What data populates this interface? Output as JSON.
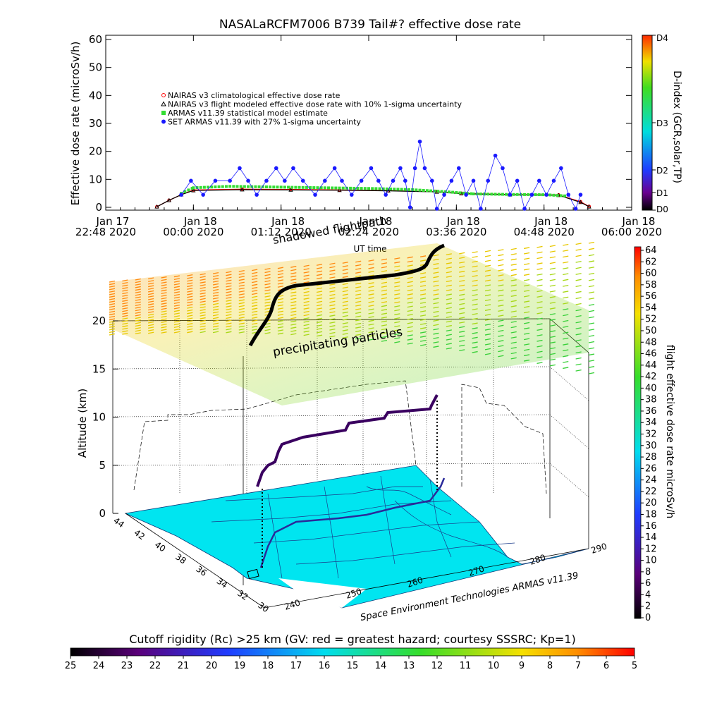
{
  "chart_data": [
    {
      "type": "scatter",
      "title": "NASALaRCFM7006  B739 Tail#? effective dose rate",
      "xlabel": "UT time",
      "ylabel": "Effective dose rate (microSv/h)",
      "ylim": [
        0,
        60
      ],
      "y_ticks": [
        "0",
        "10",
        "20",
        "30",
        "40",
        "50",
        "60"
      ],
      "x_tick_labels": [
        [
          "Jan 17",
          "22:48 2020"
        ],
        [
          "Jan 18",
          "00:00 2020"
        ],
        [
          "Jan 18",
          "01:12 2020"
        ],
        [
          "Jan 18",
          "02:24 2020"
        ],
        [
          "Jan 18",
          "03:36 2020"
        ],
        [
          "Jan 18",
          "04:48 2020"
        ],
        [
          "Jan 18",
          "06:00 2020"
        ]
      ],
      "x_ticks_minutes": [
        1368,
        1440,
        1512,
        1584,
        1656,
        1728,
        1800
      ],
      "xlim_minutes": [
        1368,
        1800
      ],
      "overlay_text": "shadowed flightpath",
      "legend_placement": "upper-left",
      "series": [
        {
          "name": "NAIRAS v3 climatological effective dose rate",
          "color": "#ff0000",
          "marker": "circle-open",
          "points": [
            [
              1410,
              0.2
            ],
            [
              1420,
              2.5
            ],
            [
              1430,
              4.5
            ],
            [
              1440,
              6.2
            ],
            [
              1480,
              6.5
            ],
            [
              1520,
              6.4
            ],
            [
              1560,
              6.2
            ],
            [
              1600,
              6.0
            ],
            [
              1640,
              5.6
            ],
            [
              1660,
              5.0
            ],
            [
              1700,
              4.6
            ],
            [
              1740,
              4.4
            ],
            [
              1758,
              2.0
            ],
            [
              1765,
              0.3
            ]
          ]
        },
        {
          "name": "NAIRAS v3 flight modeled effective dose rate with 10% 1-sigma uncertainty",
          "color": "#000000",
          "marker": "triangle-open",
          "points": [
            [
              1410,
              0.2
            ],
            [
              1420,
              2.5
            ],
            [
              1430,
              4.5
            ],
            [
              1440,
              6.0
            ],
            [
              1480,
              6.3
            ],
            [
              1520,
              6.2
            ],
            [
              1560,
              6.1
            ],
            [
              1600,
              5.9
            ],
            [
              1640,
              5.5
            ],
            [
              1660,
              4.9
            ],
            [
              1700,
              4.5
            ],
            [
              1740,
              4.3
            ],
            [
              1758,
              1.8
            ],
            [
              1765,
              0.2
            ]
          ]
        },
        {
          "name": "ARMAS v11.39 statistical model estimate",
          "color": "#33dd33",
          "marker": "square",
          "points": [
            [
              1430,
              5.0
            ],
            [
              1440,
              7.0
            ],
            [
              1470,
              7.5
            ],
            [
              1500,
              7.3
            ],
            [
              1530,
              7.1
            ],
            [
              1560,
              6.9
            ],
            [
              1590,
              6.7
            ],
            [
              1620,
              6.3
            ],
            [
              1650,
              5.5
            ],
            [
              1670,
              4.8
            ],
            [
              1700,
              4.6
            ],
            [
              1730,
              4.5
            ],
            [
              1748,
              4.0
            ]
          ]
        },
        {
          "name": "SET ARMAS v11.39 with 27% 1-sigma uncertainty",
          "color": "#1a1aff",
          "marker": "circle",
          "points": [
            [
              1430,
              4.5
            ],
            [
              1438,
              9.5
            ],
            [
              1448,
              4.5
            ],
            [
              1458,
              9.5
            ],
            [
              1470,
              9.5
            ],
            [
              1478,
              14.0
            ],
            [
              1485,
              9.5
            ],
            [
              1492,
              4.5
            ],
            [
              1500,
              9.5
            ],
            [
              1508,
              14.0
            ],
            [
              1515,
              9.5
            ],
            [
              1522,
              14.0
            ],
            [
              1530,
              9.5
            ],
            [
              1540,
              4.5
            ],
            [
              1548,
              9.5
            ],
            [
              1556,
              14.0
            ],
            [
              1562,
              9.5
            ],
            [
              1570,
              4.5
            ],
            [
              1578,
              9.5
            ],
            [
              1586,
              14.0
            ],
            [
              1592,
              9.5
            ],
            [
              1598,
              4.5
            ],
            [
              1604,
              9.5
            ],
            [
              1610,
              14.0
            ],
            [
              1614,
              9.5
            ],
            [
              1618,
              0.0
            ],
            [
              1622,
              14.0
            ],
            [
              1626,
              23.5
            ],
            [
              1630,
              14.0
            ],
            [
              1636,
              9.5
            ],
            [
              1640,
              -0.5
            ],
            [
              1646,
              4.5
            ],
            [
              1652,
              9.5
            ],
            [
              1658,
              14.0
            ],
            [
              1664,
              4.5
            ],
            [
              1670,
              9.5
            ],
            [
              1676,
              -0.5
            ],
            [
              1682,
              9.5
            ],
            [
              1688,
              18.5
            ],
            [
              1694,
              14.0
            ],
            [
              1700,
              4.5
            ],
            [
              1706,
              9.5
            ],
            [
              1712,
              -0.5
            ],
            [
              1718,
              4.5
            ],
            [
              1724,
              9.5
            ],
            [
              1730,
              4.5
            ],
            [
              1736,
              9.5
            ],
            [
              1742,
              14.0
            ],
            [
              1748,
              4.5
            ],
            [
              1754,
              -0.5
            ],
            [
              1758,
              4.5
            ]
          ]
        }
      ],
      "colorbar": {
        "label": "D-index (GCR,solar,TP)",
        "ticks": [
          "D0",
          "D1",
          "D2",
          "D3",
          "D4"
        ],
        "tick_fractions": [
          0.0,
          0.1,
          0.23,
          0.5,
          1.0
        ]
      }
    },
    {
      "type": "scatter",
      "chart_kind": "3d-surface",
      "zlabel": "Altitude (km)",
      "z_ticks": [
        "0",
        "5",
        "10",
        "15",
        "20"
      ],
      "lat_ticks": [
        "30",
        "32",
        "34",
        "36",
        "38",
        "40",
        "42",
        "44"
      ],
      "lon_ticks": [
        "240",
        "250",
        "260",
        "270",
        "280",
        "290"
      ],
      "annotation": "precipitating particles",
      "credit": "Space Environment Technologies ARMAS v11.39",
      "colorbar_right": {
        "label": "flight effective dose rate microSv/h",
        "ticks": [
          "0",
          "2",
          "4",
          "6",
          "8",
          "10",
          "12",
          "14",
          "16",
          "18",
          "20",
          "22",
          "24",
          "26",
          "28",
          "30",
          "32",
          "34",
          "36",
          "38",
          "40",
          "42",
          "44",
          "46",
          "48",
          "50",
          "52",
          "54",
          "56",
          "58",
          "60",
          "62",
          "64"
        ]
      },
      "colorbar_bottom": {
        "label": "Cutoff rigidity (Rc) >25 km (GV: red = greatest hazard; courtesy SSSRC; Kp=1)",
        "ticks": [
          "25",
          "24",
          "23",
          "22",
          "21",
          "20",
          "19",
          "18",
          "17",
          "16",
          "15",
          "14",
          "13",
          "12",
          "11",
          "10",
          "9",
          "8",
          "7",
          "6",
          "5"
        ]
      },
      "flight_track": {
        "lat": [
          33.5,
          34.5,
          36.0,
          37.5,
          38.5,
          39.5,
          40.5,
          41.2,
          41.8,
          42.2
        ],
        "lon": [
          243.5,
          248.0,
          253.0,
          258.0,
          262.0,
          266.0,
          270.0,
          273.0,
          276.0,
          278.5
        ],
        "alt_km": [
          0.5,
          3.5,
          8.5,
          10.5,
          10.5,
          11.0,
          11.0,
          11.2,
          11.2,
          0.5
        ]
      }
    }
  ]
}
